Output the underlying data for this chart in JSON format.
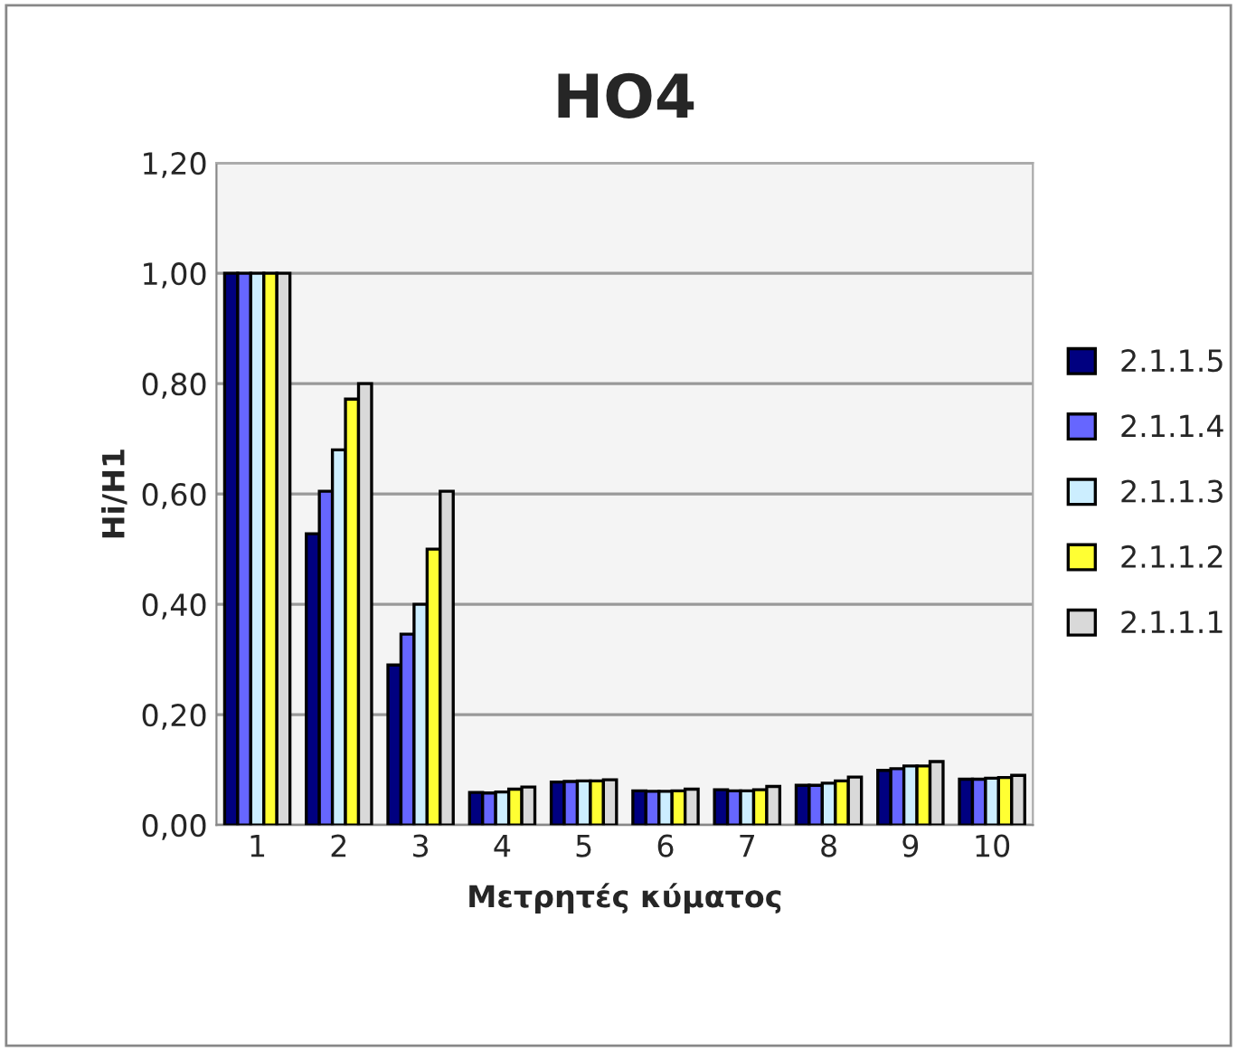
{
  "chart_data": {
    "type": "bar",
    "title": "HO4",
    "xlabel": "Μετρητές κύματος",
    "ylabel": "Hi/H1",
    "categories": [
      "1",
      "2",
      "3",
      "4",
      "5",
      "6",
      "7",
      "8",
      "9",
      "10"
    ],
    "series": [
      {
        "name": "2.1.1.5",
        "color": "#000080",
        "values": [
          1.0,
          0.528,
          0.29,
          0.059,
          0.078,
          0.062,
          0.064,
          0.072,
          0.099,
          0.083
        ]
      },
      {
        "name": "2.1.1.4",
        "color": "#6666ff",
        "values": [
          1.0,
          0.605,
          0.346,
          0.058,
          0.079,
          0.061,
          0.062,
          0.072,
          0.102,
          0.083
        ]
      },
      {
        "name": "2.1.1.3",
        "color": "#cceeff",
        "values": [
          1.0,
          0.68,
          0.4,
          0.06,
          0.08,
          0.061,
          0.062,
          0.076,
          0.107,
          0.085
        ]
      },
      {
        "name": "2.1.1.2",
        "color": "#ffff33",
        "values": [
          1.0,
          0.772,
          0.5,
          0.065,
          0.08,
          0.062,
          0.064,
          0.08,
          0.107,
          0.086
        ]
      },
      {
        "name": "2.1.1.1",
        "color": "#d9d9d9",
        "values": [
          1.0,
          0.8,
          0.605,
          0.069,
          0.082,
          0.065,
          0.07,
          0.087,
          0.115,
          0.09
        ]
      }
    ],
    "ylim": [
      0,
      1.2
    ],
    "yticks": [
      {
        "value": 0,
        "label": "0,00"
      },
      {
        "value": 0.2,
        "label": "0,20"
      },
      {
        "value": 0.4,
        "label": "0,40"
      },
      {
        "value": 0.6,
        "label": "0,60"
      },
      {
        "value": 0.8,
        "label": "0,80"
      },
      {
        "value": 1.0,
        "label": "1,00"
      },
      {
        "value": 1.2,
        "label": "1,20"
      }
    ],
    "grid": "y",
    "legend": "right"
  }
}
